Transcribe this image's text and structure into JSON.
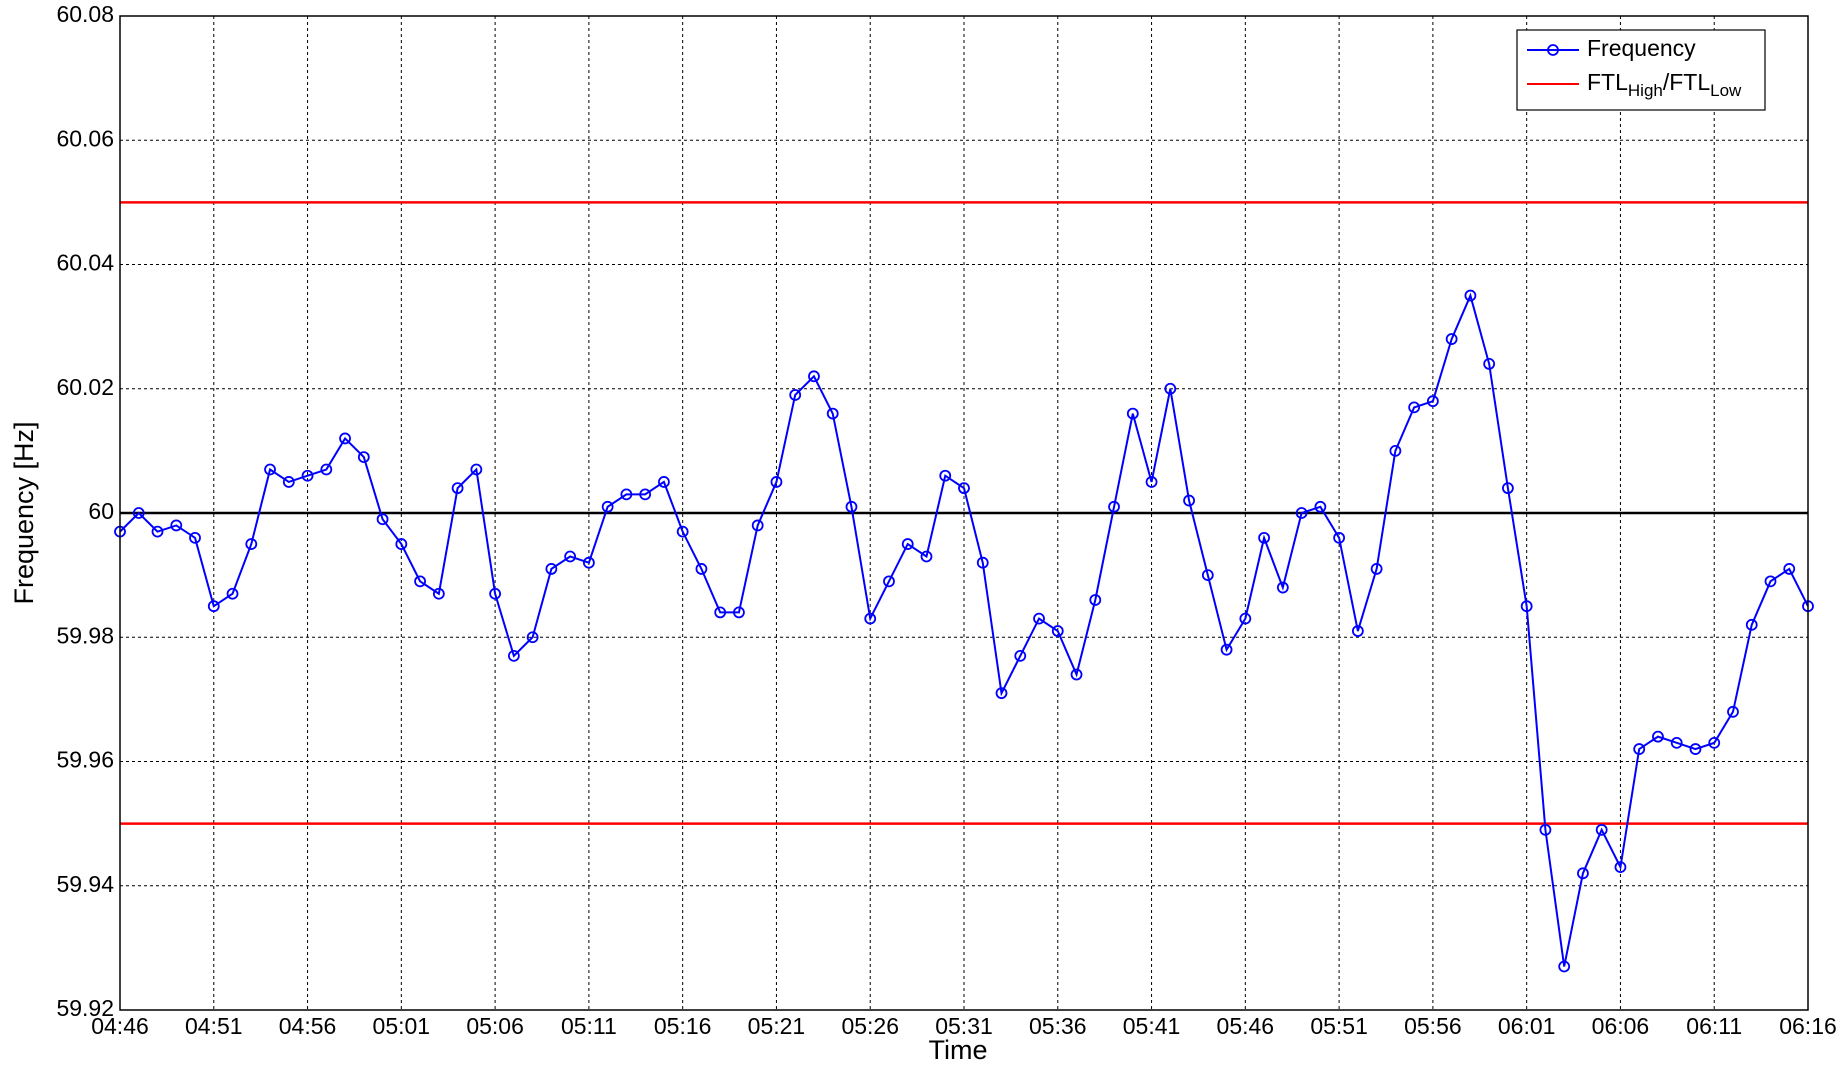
{
  "chart_data": {
    "type": "line",
    "xlabel": "Time",
    "ylabel": "Frequency [Hz]",
    "categories": [
      "04:46",
      null,
      null,
      null,
      null,
      "04:51",
      null,
      null,
      null,
      null,
      "04:56",
      null,
      null,
      null,
      null,
      "05:01",
      null,
      null,
      null,
      null,
      "05:06",
      null,
      null,
      null,
      null,
      "05:11",
      null,
      null,
      null,
      null,
      "05:16",
      null,
      null,
      null,
      null,
      "05:21",
      null,
      null,
      null,
      null,
      "05:26",
      null,
      null,
      null,
      null,
      "05:31",
      null,
      null,
      null,
      null,
      "05:36",
      null,
      null,
      null,
      null,
      "05:41",
      null,
      null,
      null,
      null,
      "05:46",
      null,
      null,
      null,
      null,
      "05:51",
      null,
      null,
      null,
      null,
      "05:56",
      null,
      null,
      null,
      null,
      "06:01",
      null,
      null,
      null,
      null,
      "06:06",
      null,
      null,
      null,
      null,
      "06:11",
      null,
      null,
      null,
      null,
      "06:16"
    ],
    "series": [
      {
        "name": "Frequency",
        "color": "#0000ff",
        "marker": "circle",
        "values": [
          59.997,
          60.0,
          59.997,
          59.998,
          59.996,
          59.985,
          59.987,
          59.995,
          60.007,
          60.005,
          60.006,
          60.007,
          60.012,
          60.009,
          59.999,
          59.995,
          59.989,
          59.987,
          60.004,
          60.007,
          59.987,
          59.977,
          59.98,
          59.991,
          59.993,
          59.992,
          60.001,
          60.003,
          60.003,
          60.005,
          59.997,
          59.991,
          59.984,
          59.984,
          59.998,
          60.005,
          60.019,
          60.022,
          60.016,
          60.001,
          59.983,
          59.989,
          59.995,
          59.993,
          60.006,
          60.004,
          59.992,
          59.971,
          59.977,
          59.983,
          59.981,
          59.974,
          59.986,
          60.001,
          60.016,
          60.005,
          60.02,
          60.002,
          59.99,
          59.978,
          59.983,
          59.996,
          59.988,
          60.0,
          60.001,
          59.996,
          59.981,
          59.991,
          60.01,
          60.017,
          60.018,
          60.028,
          60.035,
          60.024,
          60.004,
          59.985,
          59.949,
          59.927,
          59.942,
          59.949,
          59.943,
          59.962,
          59.964,
          59.963,
          59.962,
          59.963,
          59.968,
          59.982,
          59.989,
          59.991,
          59.985
        ]
      }
    ],
    "reference_lines": [
      {
        "value": 60.05,
        "color": "#ff0000"
      },
      {
        "value": 59.95,
        "color": "#ff0000"
      }
    ],
    "reference_legend": [
      {
        "text": "FTL"
      },
      {
        "text": "High",
        "sub": true
      },
      {
        "text": "/FTL"
      },
      {
        "text": "Low",
        "sub": true
      }
    ],
    "baseline": {
      "value": 60,
      "color": "#000000"
    },
    "ylim": [
      59.92,
      60.08
    ],
    "yticks": [
      59.92,
      59.94,
      59.96,
      59.98,
      60,
      60.02,
      60.04,
      60.06,
      60.08
    ],
    "grid": true,
    "legend": "upper right"
  }
}
